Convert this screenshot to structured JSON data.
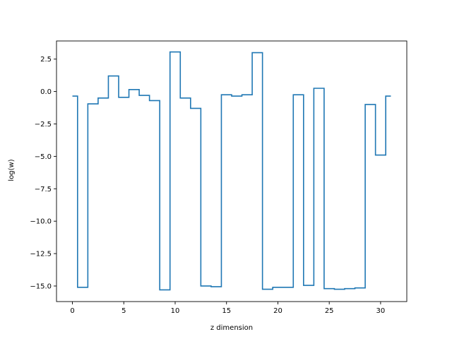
{
  "chart_data": {
    "type": "line",
    "drawstyle": "steps-mid",
    "xlabel": "z dimension",
    "ylabel": "log(w)",
    "xlim": [
      -1.55,
      32.55
    ],
    "ylim": [
      -16.2,
      3.9
    ],
    "xticks": [
      0,
      5,
      10,
      15,
      20,
      25,
      30
    ],
    "yticks": [
      2.5,
      0.0,
      -2.5,
      -5.0,
      -7.5,
      -10.0,
      -12.5,
      -15.0
    ],
    "xtick_labels": [
      "0",
      "5",
      "10",
      "15",
      "20",
      "25",
      "30"
    ],
    "ytick_labels": [
      "2.5",
      "0.0",
      "−2.5",
      "−5.0",
      "−7.5",
      "−10.0",
      "−12.5",
      "−15.0"
    ],
    "grid": false,
    "color": "#1f77b4",
    "series": [
      {
        "x": [
          0,
          1,
          2,
          3,
          4,
          5,
          6,
          7,
          8,
          9,
          10,
          11,
          12,
          13,
          14,
          15,
          16,
          17,
          18,
          19,
          20,
          21,
          22,
          23,
          24,
          25,
          26,
          27,
          28,
          29,
          30,
          31
        ],
        "y": [
          -0.35,
          -15.1,
          -0.95,
          -0.5,
          1.2,
          -0.45,
          0.15,
          -0.3,
          -0.7,
          -15.3,
          3.05,
          -0.5,
          -1.3,
          -15.0,
          -15.05,
          -0.25,
          -0.35,
          -0.25,
          3.0,
          -15.25,
          -15.1,
          -15.1,
          -0.25,
          -14.95,
          0.25,
          -15.2,
          -15.25,
          -15.2,
          -15.15,
          -1.0,
          -4.9,
          -0.35
        ]
      }
    ]
  }
}
